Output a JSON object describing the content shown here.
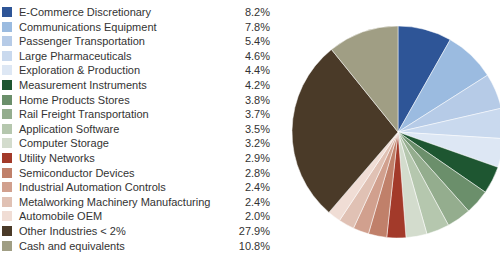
{
  "chart_data": {
    "type": "pie",
    "categories": [
      "E-Commerce Discretionary",
      "Communications Equipment",
      "Passenger Transportation",
      "Large Pharmaceuticals",
      "Exploration & Production",
      "Measurement Instruments",
      "Home Products Stores",
      "Rail Freight Transportation",
      "Application Software",
      "Computer Storage",
      "Utility Networks",
      "Semiconductor Devices",
      "Industrial Automation Controls",
      "Metalworking Machinery Manufacturing",
      "Automobile OEM",
      "Other Industries < 2%",
      "Cash and equivalents"
    ],
    "values": [
      8.2,
      7.8,
      5.4,
      4.6,
      4.4,
      4.2,
      3.8,
      3.7,
      3.5,
      3.2,
      2.9,
      2.8,
      2.4,
      2.4,
      2.0,
      27.9,
      10.8
    ],
    "value_labels": [
      "8.2%",
      "7.8%",
      "5.4%",
      "4.6%",
      "4.4%",
      "4.2%",
      "3.8%",
      "3.7%",
      "3.5%",
      "3.2%",
      "2.9%",
      "2.8%",
      "2.4%",
      "2.4%",
      "2.0%",
      "27.9%",
      "10.8%"
    ],
    "colors": [
      "#2e5597",
      "#9bbbe0",
      "#b6cbe7",
      "#c9d9ee",
      "#dde7f4",
      "#1e5631",
      "#6b8f6b",
      "#94ad8e",
      "#b5c7ae",
      "#d3dccd",
      "#a33a2a",
      "#c0806a",
      "#d1a08e",
      "#e0c1b4",
      "#f0ddd5",
      "#4a3a28",
      "#a09e84"
    ],
    "legend": "left"
  }
}
